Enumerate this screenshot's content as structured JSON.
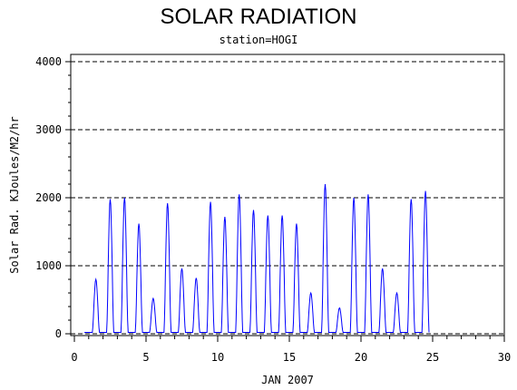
{
  "chart_data": {
    "type": "line",
    "title": "SOLAR RADIATION",
    "subtitle": "station=HOGI",
    "xlabel": "JAN 2007",
    "ylabel": "Solar Rad. KJoules/M2/hr",
    "xlim": [
      0,
      30
    ],
    "ylim": [
      0,
      4000
    ],
    "xticks": [
      0,
      5,
      10,
      15,
      20,
      25,
      30
    ],
    "yticks": [
      0,
      1000,
      2000,
      3000,
      4000
    ],
    "grid": "horizontal dashed",
    "line_color": "#0000ff",
    "daily_peaks": [
      {
        "day": 1,
        "peak": 800
      },
      {
        "day": 2,
        "peak": 1980
      },
      {
        "day": 3,
        "peak": 2000
      },
      {
        "day": 4,
        "peak": 1620
      },
      {
        "day": 5,
        "peak": 520
      },
      {
        "day": 6,
        "peak": 1920
      },
      {
        "day": 7,
        "peak": 960
      },
      {
        "day": 8,
        "peak": 820
      },
      {
        "day": 9,
        "peak": 1940
      },
      {
        "day": 10,
        "peak": 1720
      },
      {
        "day": 11,
        "peak": 2050
      },
      {
        "day": 12,
        "peak": 1820
      },
      {
        "day": 13,
        "peak": 1740
      },
      {
        "day": 14,
        "peak": 1740
      },
      {
        "day": 15,
        "peak": 1620
      },
      {
        "day": 16,
        "peak": 600
      },
      {
        "day": 17,
        "peak": 2200
      },
      {
        "day": 18,
        "peak": 380
      },
      {
        "day": 19,
        "peak": 2000
      },
      {
        "day": 20,
        "peak": 2050
      },
      {
        "day": 21,
        "peak": 960
      },
      {
        "day": 22,
        "peak": 600
      },
      {
        "day": 23,
        "peak": 1980
      },
      {
        "day": 24,
        "peak": 2100
      }
    ]
  }
}
